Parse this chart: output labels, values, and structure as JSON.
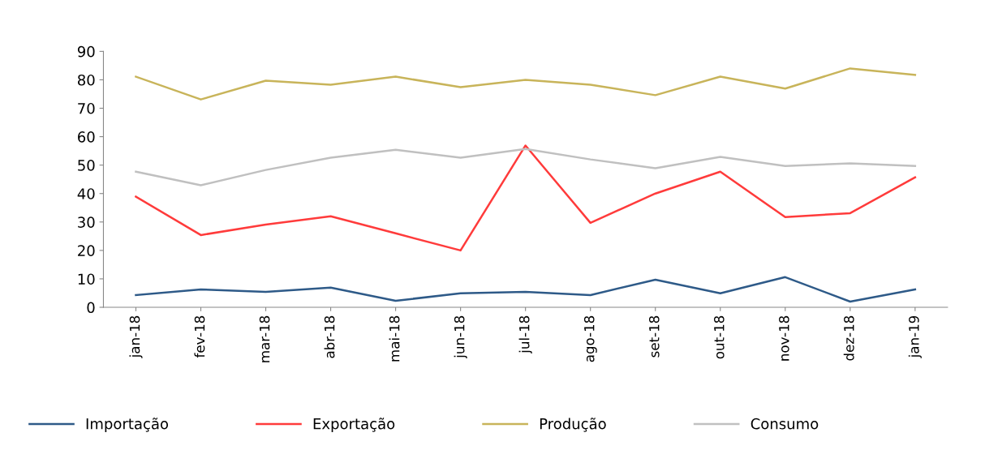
{
  "chart_data": {
    "type": "line",
    "categories": [
      "jan-18",
      "fev-18",
      "mar-18",
      "abr-18",
      "mai-18",
      "jun-18",
      "jul-18",
      "ago-18",
      "set-18",
      "out-18",
      "nov-18",
      "dez-18",
      "jan-19"
    ],
    "series": [
      {
        "name": "Importação",
        "color": "#2e5a88",
        "values": [
          4.3,
          6.3,
          5.4,
          6.9,
          2.3,
          4.9,
          5.4,
          4.3,
          9.7,
          4.9,
          10.6,
          2,
          6.3
        ]
      },
      {
        "name": "Exportação",
        "color": "#ff3b3b",
        "values": [
          38.9,
          25.4,
          29.1,
          32,
          26,
          20,
          56.9,
          29.7,
          40,
          47.7,
          31.7,
          33.1,
          45.7
        ]
      },
      {
        "name": "Produção",
        "color": "#c8b45a",
        "values": [
          81.1,
          73.1,
          79.7,
          78.3,
          81.1,
          77.4,
          80,
          78.3,
          74.6,
          81.1,
          76.9,
          84,
          81.7
        ]
      },
      {
        "name": "Consumo",
        "color": "#c0c0c0",
        "values": [
          47.7,
          42.9,
          48.3,
          52.6,
          55.4,
          52.6,
          55.7,
          52,
          48.9,
          52.9,
          49.7,
          50.6,
          49.7
        ]
      }
    ],
    "ylim": [
      0,
      90
    ],
    "yticks": [
      0,
      10,
      20,
      30,
      40,
      50,
      60,
      70,
      80,
      90
    ],
    "grid": false,
    "legend": "bottom",
    "marker": "none",
    "line_style": "solid"
  }
}
